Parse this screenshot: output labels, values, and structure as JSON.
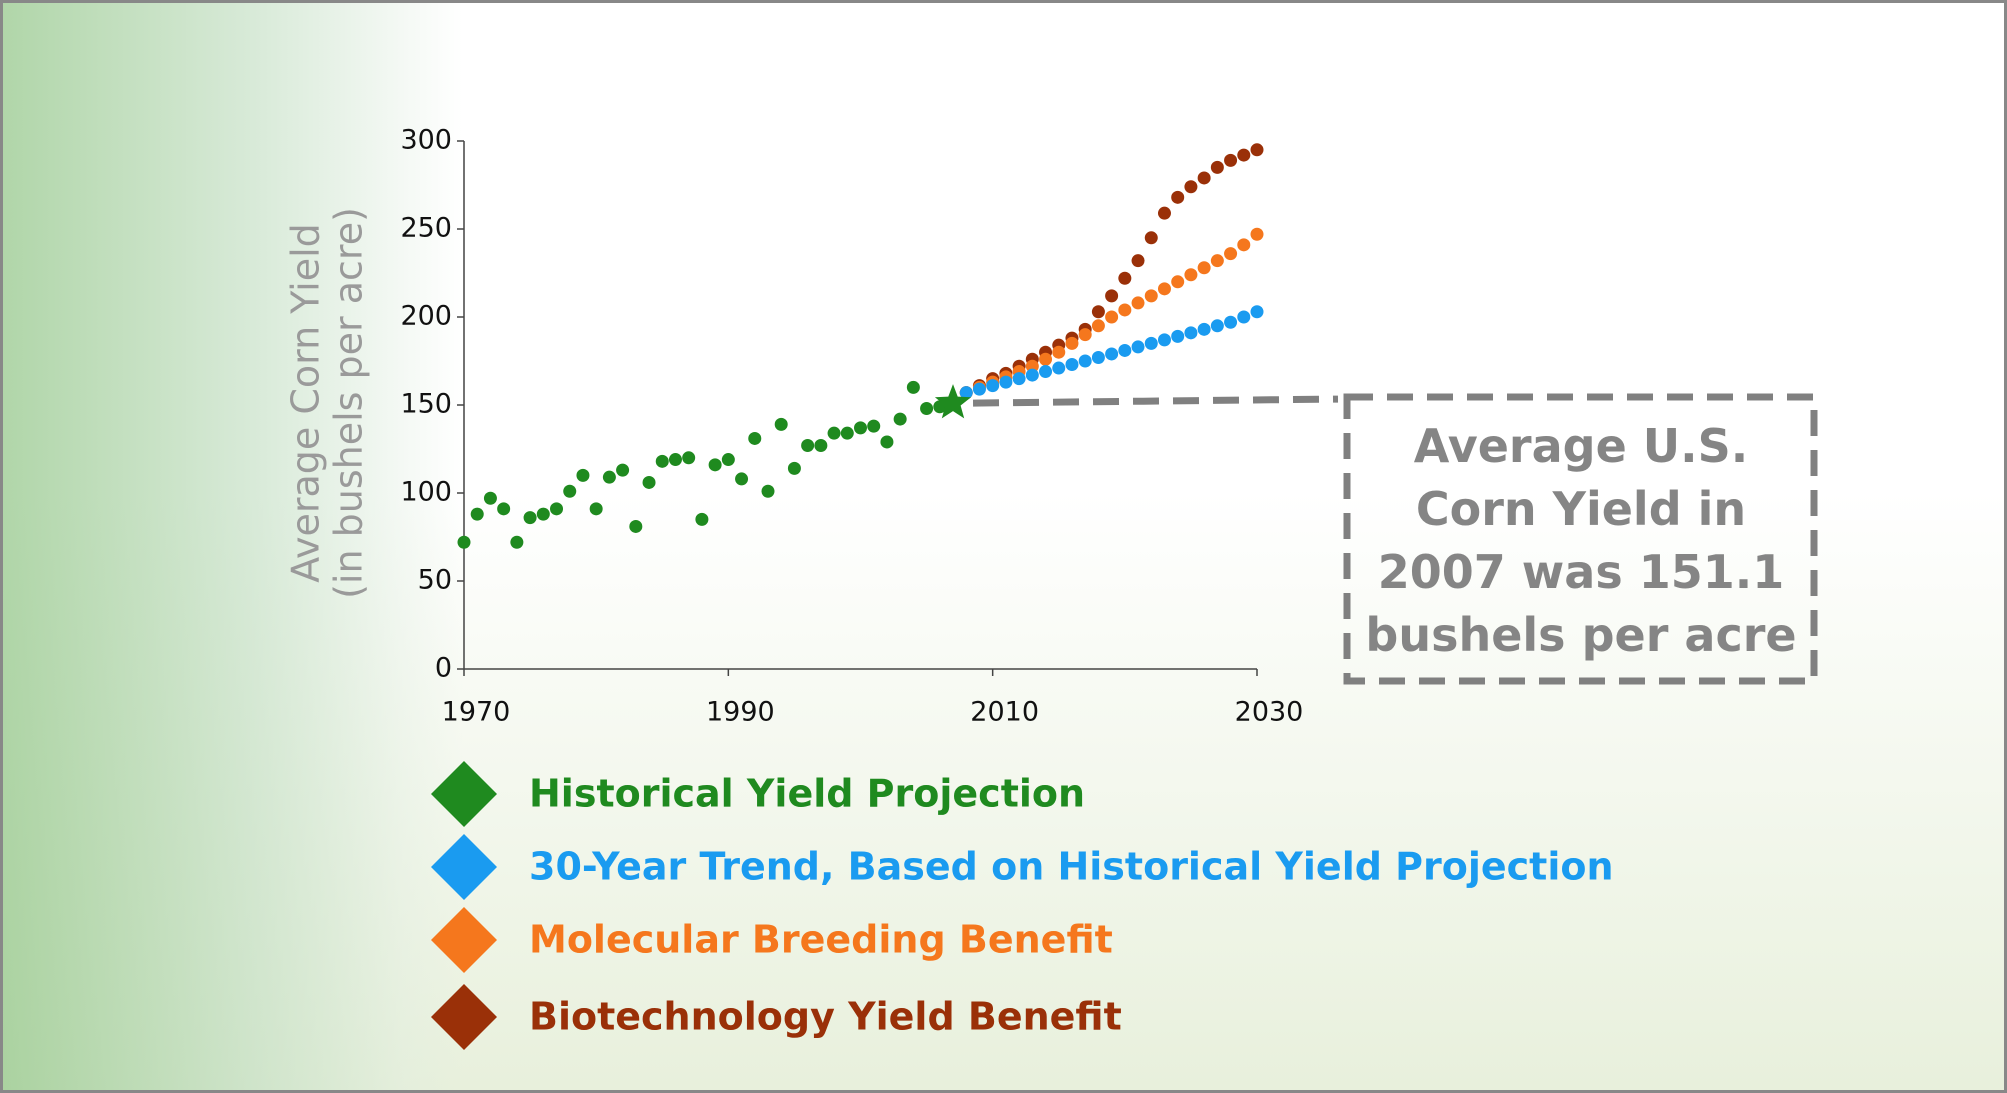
{
  "chart_data": {
    "type": "scatter",
    "ylabel": [
      "Average Corn Yield",
      "(in bushels per acre)"
    ],
    "xlim": [
      1970,
      2030
    ],
    "xticks": [
      1970,
      1990,
      2010,
      2030
    ],
    "ylim": [
      0,
      300
    ],
    "yticks": [
      0,
      50,
      100,
      150,
      200,
      250,
      300
    ],
    "series": [
      {
        "name": "Historical Yield Projection",
        "color": "#1f8a1f",
        "x": [
          1970,
          1971,
          1972,
          1973,
          1974,
          1975,
          1976,
          1977,
          1978,
          1979,
          1980,
          1981,
          1982,
          1983,
          1984,
          1985,
          1986,
          1987,
          1988,
          1989,
          1990,
          1991,
          1992,
          1993,
          1994,
          1995,
          1996,
          1997,
          1998,
          1999,
          2000,
          2001,
          2002,
          2003,
          2004,
          2005,
          2006
        ],
        "values": [
          72,
          88,
          97,
          91,
          72,
          86,
          88,
          91,
          101,
          110,
          91,
          109,
          113,
          81,
          106,
          118,
          119,
          120,
          85,
          116,
          119,
          108,
          131,
          101,
          139,
          114,
          127,
          127,
          134,
          134,
          137,
          138,
          129,
          142,
          160,
          148,
          149
        ]
      },
      {
        "name": "30-Year Trend, Based on Historical Yield Projection",
        "color": "#1a9bf0",
        "x": [
          2008,
          2009,
          2010,
          2011,
          2012,
          2013,
          2014,
          2015,
          2016,
          2017,
          2018,
          2019,
          2020,
          2021,
          2022,
          2023,
          2024,
          2025,
          2026,
          2027,
          2028,
          2029,
          2030
        ],
        "values": [
          157,
          159,
          161,
          163,
          165,
          167,
          169,
          171,
          173,
          175,
          177,
          179,
          181,
          183,
          185,
          187,
          189,
          191,
          193,
          195,
          197,
          200,
          203
        ]
      },
      {
        "name": "Molecular Breeding Benefit",
        "color": "#f5771d",
        "x": [
          2008,
          2009,
          2010,
          2011,
          2012,
          2013,
          2014,
          2015,
          2016,
          2017,
          2018,
          2019,
          2020,
          2021,
          2022,
          2023,
          2024,
          2025,
          2026,
          2027,
          2028,
          2029,
          2030
        ],
        "values": [
          157,
          160,
          163,
          166,
          169,
          172,
          176,
          180,
          185,
          190,
          195,
          200,
          204,
          208,
          212,
          216,
          220,
          224,
          228,
          232,
          236,
          241,
          247
        ]
      },
      {
        "name": "Biotechnology Yield Benefit",
        "color": "#9a3008",
        "x": [
          2008,
          2009,
          2010,
          2011,
          2012,
          2013,
          2014,
          2015,
          2016,
          2017,
          2018,
          2019,
          2020,
          2021,
          2022,
          2023,
          2024,
          2025,
          2026,
          2027,
          2028,
          2029,
          2030
        ],
        "values": [
          157,
          161,
          165,
          168,
          172,
          176,
          180,
          184,
          188,
          193,
          203,
          212,
          222,
          232,
          245,
          259,
          268,
          274,
          279,
          285,
          289,
          292,
          295
        ]
      }
    ],
    "highlight": {
      "x": 2007,
      "y": 151.1,
      "color": "#1f8a1f"
    },
    "annotation": "Average U.S. Corn Yield in 2007 was 151.1 bushels per acre"
  }
}
